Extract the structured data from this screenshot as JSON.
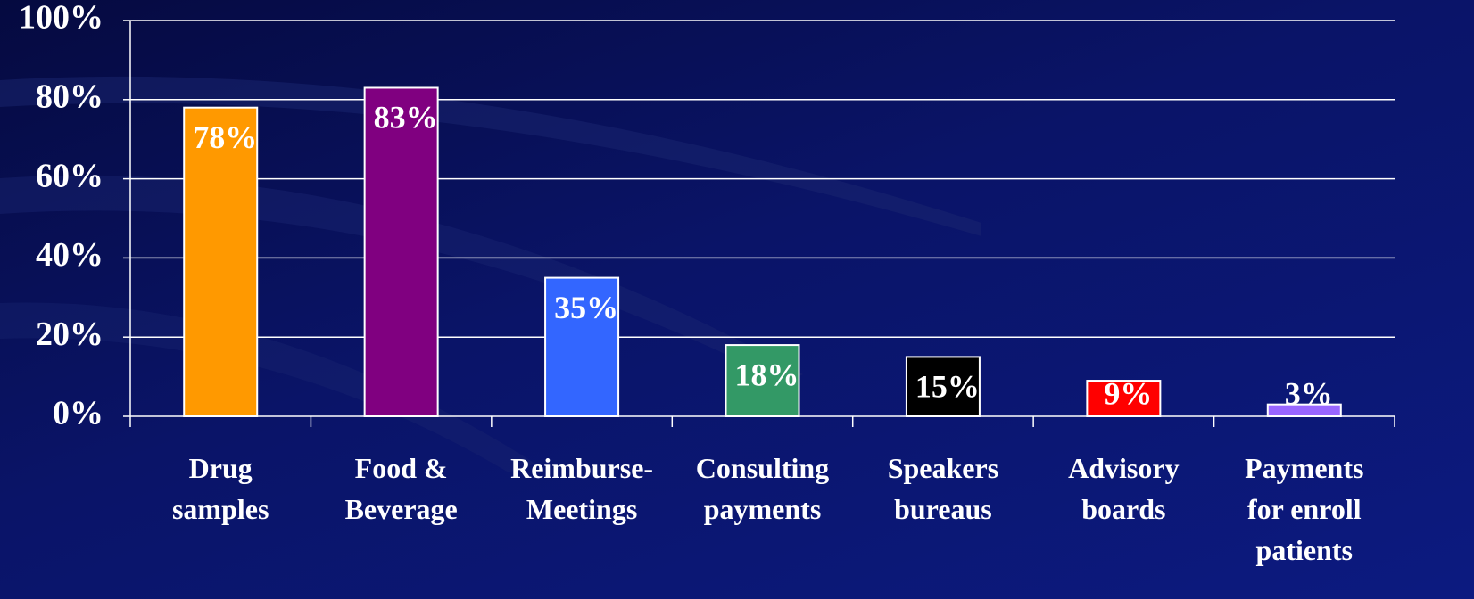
{
  "chart_data": {
    "type": "bar",
    "categories": [
      "Drug\nsamples",
      "Food &\nBeverage",
      "Reimburse-\nMeetings",
      "Consulting\npayments",
      "Speakers\nbureaus",
      "Advisory\nboards",
      "Payments\nfor enroll\npatients"
    ],
    "values": [
      78,
      83,
      35,
      18,
      15,
      9,
      3
    ],
    "value_labels": [
      "78%",
      "83%",
      "35%",
      "18%",
      "15%",
      "9%",
      "3%"
    ],
    "colors": [
      "#ff9900",
      "#800080",
      "#3366ff",
      "#339966",
      "#000000",
      "#ff0000",
      "#9966ff"
    ],
    "ylim": [
      0,
      100
    ],
    "yticks": [
      {
        "value": 0,
        "label": "0%"
      },
      {
        "value": 20,
        "label": "20%"
      },
      {
        "value": 40,
        "label": "40%"
      },
      {
        "value": 60,
        "label": "60%"
      },
      {
        "value": 80,
        "label": "80%"
      },
      {
        "value": 100,
        "label": "100%"
      }
    ],
    "grid": true
  }
}
